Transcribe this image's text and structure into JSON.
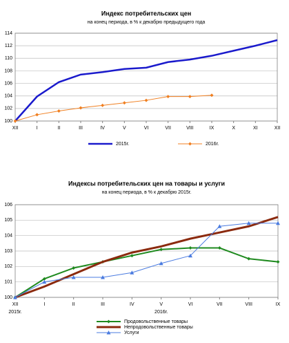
{
  "chart_data": [
    {
      "type": "line",
      "title": "Индекс потребительских цен",
      "subtitle": "на конец периода, в % к декабрю предыдущего года",
      "categories": [
        "XII",
        "I",
        "II",
        "III",
        "IV",
        "V",
        "VI",
        "VII",
        "VIII",
        "IX",
        "X",
        "XI",
        "XII"
      ],
      "series": [
        {
          "name": "2015г.",
          "color": "#1a1acc",
          "width": 2.5,
          "marker": "none",
          "values": [
            100,
            103.9,
            106.2,
            107.4,
            107.8,
            108.3,
            108.5,
            109.4,
            109.8,
            110.4,
            111.2,
            112.0,
            112.9
          ]
        },
        {
          "name": "2016г.",
          "color": "#f07f20",
          "width": 1,
          "marker": "diamond",
          "values": [
            100,
            101.0,
            101.6,
            102.1,
            102.5,
            102.9,
            103.3,
            103.9,
            103.9,
            104.1,
            null,
            null,
            null
          ]
        }
      ],
      "ylim": [
        100,
        114
      ],
      "yticks": [
        100,
        102,
        104,
        106,
        108,
        110,
        112,
        114
      ],
      "grid": true,
      "legend": "bottom-row"
    },
    {
      "type": "line",
      "title": "Индексы потребительских цен на товары и  услуги",
      "subtitle": "на конец периода, в % к декабрю 2015г.",
      "categories": [
        "XII",
        "I",
        "II",
        "III",
        "IV",
        "V",
        "VI",
        "VII",
        "VIII",
        "IX"
      ],
      "period_labels": [
        "2015г.",
        "2016г."
      ],
      "series": [
        {
          "name": "Продовольственные товары",
          "color": "#1f8a1f",
          "width": 2,
          "marker": "diamond",
          "values": [
            100,
            101.2,
            101.9,
            102.3,
            102.7,
            103.1,
            103.2,
            103.2,
            102.5,
            102.3
          ]
        },
        {
          "name": "Непродовольственные товары",
          "color": "#8b2a0e",
          "width": 3,
          "marker": "none",
          "values": [
            100,
            100.7,
            101.5,
            102.3,
            102.9,
            103.3,
            103.8,
            104.2,
            104.6,
            105.2
          ]
        },
        {
          "name": "Услуги",
          "color": "#4a7be0",
          "width": 1,
          "marker": "triangle",
          "values": [
            100,
            101.0,
            101.3,
            101.3,
            101.6,
            102.2,
            102.7,
            104.6,
            104.8,
            104.8
          ]
        }
      ],
      "ylim": [
        100,
        106
      ],
      "yticks": [
        100,
        101,
        102,
        103,
        104,
        105,
        106
      ],
      "grid": true,
      "legend": "bottom-column"
    }
  ]
}
